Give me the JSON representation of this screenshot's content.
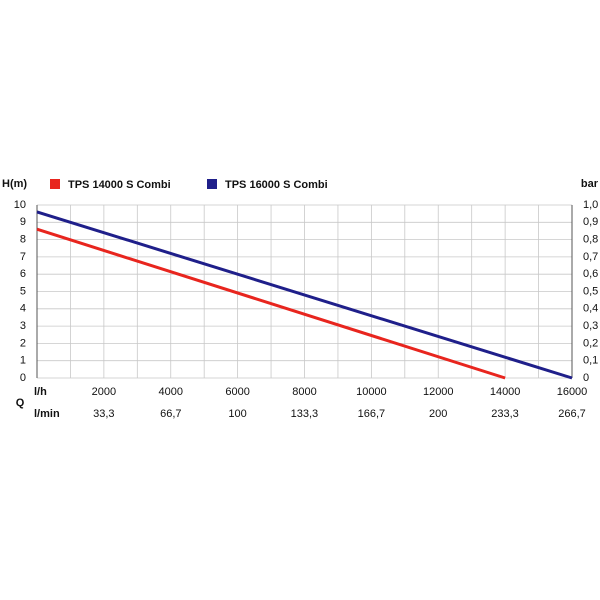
{
  "chart_data": {
    "type": "line",
    "ylabel": "H(m)",
    "y2label": "bar",
    "xlabel": "Q",
    "xunit": "l/h",
    "x2unit": "l/min",
    "xlim": [
      0,
      16000
    ],
    "xticks": [
      2000,
      4000,
      6000,
      8000,
      10000,
      12000,
      14000,
      16000
    ],
    "xgrid": [
      1000,
      2000,
      3000,
      4000,
      5000,
      6000,
      7000,
      8000,
      9000,
      10000,
      11000,
      12000,
      13000,
      14000,
      15000,
      16000
    ],
    "x2lim": [
      0,
      266.7
    ],
    "x2ticks": [
      {
        "value": 33.3,
        "label": "33,3"
      },
      {
        "value": 66.7,
        "label": "66,7"
      },
      100,
      {
        "value": 133.3,
        "label": "133,3"
      },
      {
        "value": 166.7,
        "label": "166,7"
      },
      200,
      {
        "value": 233.3,
        "label": "233,3"
      },
      {
        "value": 266.7,
        "label": "266,7"
      }
    ],
    "ylim": [
      0,
      10
    ],
    "yticks": [
      0,
      1,
      2,
      3,
      4,
      5,
      6,
      7,
      8,
      9,
      10
    ],
    "y2lim": [
      0,
      1.0
    ],
    "y2ticks": [
      0,
      {
        "value": 0.1,
        "label": "0,1"
      },
      {
        "value": 0.2,
        "label": "0,2"
      },
      {
        "value": 0.3,
        "label": "0,3"
      },
      {
        "value": 0.4,
        "label": "0,4"
      },
      {
        "value": 0.5,
        "label": "0,5"
      },
      {
        "value": 0.6,
        "label": "0,6"
      },
      {
        "value": 0.7,
        "label": "0,7"
      },
      {
        "value": 0.8,
        "label": "0,8"
      },
      {
        "value": 0.9,
        "label": "0,9"
      },
      {
        "value": 1.0,
        "label": "1,0"
      }
    ],
    "grid": true,
    "series": [
      {
        "name": "TPS 14000 S Combi",
        "color": "#e8251e",
        "x": [
          0,
          14000
        ],
        "values": [
          8.6,
          0
        ]
      },
      {
        "name": "TPS 16000 S Combi",
        "color": "#1f1f8a",
        "x": [
          0,
          16000
        ],
        "values": [
          9.6,
          0
        ]
      }
    ]
  }
}
